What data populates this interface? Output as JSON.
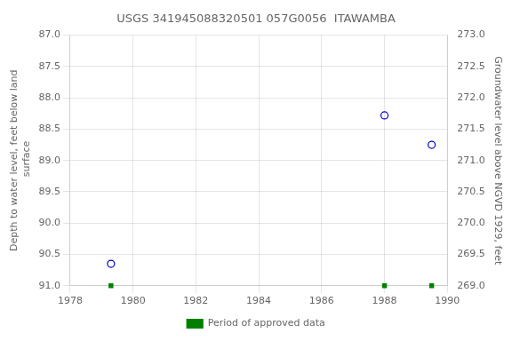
{
  "chart_data": {
    "type": "scatter",
    "title": "USGS 341945088320501 057G0056  ITAWAMBA",
    "x": [
      1979.3,
      1988.0,
      1989.5
    ],
    "series": [
      {
        "values": [
          90.65,
          88.28,
          88.75
        ],
        "color": "#0000cc",
        "marker": "circle"
      },
      {
        "name": "Period of approved data",
        "values": [
          91.0,
          91.0,
          91.0
        ],
        "color": "#008000",
        "marker": "square"
      }
    ],
    "xlim": [
      1978,
      1990
    ],
    "xticks": [
      1978,
      1980,
      1982,
      1984,
      1986,
      1988,
      1990
    ],
    "ylim": [
      91.0,
      87.0
    ],
    "yticks": [
      {
        "value": 87.0,
        "label": "87.0"
      },
      87.5,
      {
        "value": 88.0,
        "label": "88.0"
      },
      88.5,
      {
        "value": 89.0,
        "label": "89.0"
      },
      89.5,
      {
        "value": 90.0,
        "label": "90.0"
      },
      90.5,
      {
        "value": 91.0,
        "label": "91.0"
      }
    ],
    "y2lim": [
      269.0,
      273.0
    ],
    "y2ticks": [
      {
        "value": 269.0,
        "label": "269.0"
      },
      269.5,
      {
        "value": 270.0,
        "label": "270.0"
      },
      270.5,
      {
        "value": 271.0,
        "label": "271.0"
      },
      271.5,
      {
        "value": 272.0,
        "label": "272.0"
      },
      272.5,
      {
        "value": 273.0,
        "label": "273.0"
      }
    ],
    "ylabel": "Depth to water level, feet below land\n surface",
    "y2label": "Groundwater level above NGVD 1929, feet",
    "grid": true,
    "legend": "bottom"
  }
}
